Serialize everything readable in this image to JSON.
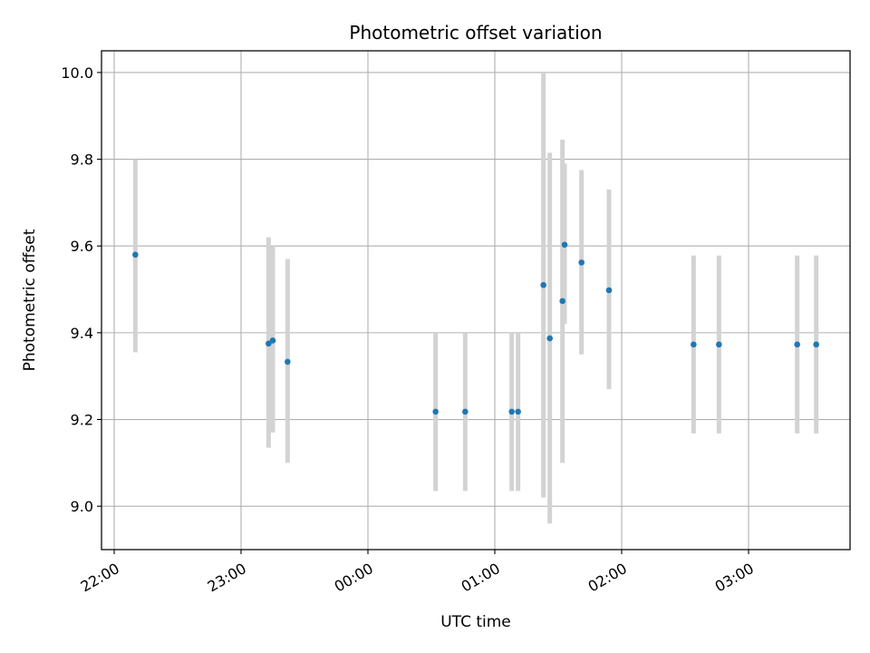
{
  "chart_data": {
    "type": "scatter",
    "title": "Photometric offset variation",
    "xlabel": "UTC time",
    "ylabel": "Photometric offset",
    "xlim": [
      "2021-01-01 21:54",
      "2021-01-02 03:48"
    ],
    "ylim": [
      8.9,
      10.05
    ],
    "x_tick_labels": [
      "22:00",
      "23:00",
      "00:00",
      "01:00",
      "02:00",
      "03:00"
    ],
    "y_tick_labels": [
      "9.0",
      "9.2",
      "9.4",
      "9.6",
      "9.8",
      "10.0"
    ],
    "grid": true,
    "marker_color": "#1f77b4",
    "errorbar_color": "#d3d3d3",
    "series": [
      {
        "points": [
          {
            "x": "2021-01-01 22:10",
            "y": 9.58,
            "yerr_low": 9.355,
            "yerr_high": 9.8
          },
          {
            "x": "2021-01-01 23:13",
            "y": 9.375,
            "yerr_low": 9.135,
            "yerr_high": 9.62
          },
          {
            "x": "2021-01-01 23:15",
            "y": 9.382,
            "yerr_low": 9.17,
            "yerr_high": 9.6
          },
          {
            "x": "2021-01-01 23:22",
            "y": 9.333,
            "yerr_low": 9.1,
            "yerr_high": 9.57
          },
          {
            "x": "2021-01-02 00:32",
            "y": 9.218,
            "yerr_low": 9.035,
            "yerr_high": 9.4
          },
          {
            "x": "2021-01-02 00:46",
            "y": 9.218,
            "yerr_low": 9.035,
            "yerr_high": 9.4
          },
          {
            "x": "2021-01-02 01:08",
            "y": 9.218,
            "yerr_low": 9.035,
            "yerr_high": 9.4
          },
          {
            "x": "2021-01-02 01:11",
            "y": 9.218,
            "yerr_low": 9.035,
            "yerr_high": 9.4
          },
          {
            "x": "2021-01-02 01:23",
            "y": 9.51,
            "yerr_low": 9.02,
            "yerr_high": 10.0
          },
          {
            "x": "2021-01-02 01:26",
            "y": 9.387,
            "yerr_low": 8.96,
            "yerr_high": 9.815
          },
          {
            "x": "2021-01-02 01:32",
            "y": 9.473,
            "yerr_low": 9.1,
            "yerr_high": 9.845
          },
          {
            "x": "2021-01-02 01:33",
            "y": 9.603,
            "yerr_low": 9.42,
            "yerr_high": 9.79
          },
          {
            "x": "2021-01-02 01:41",
            "y": 9.562,
            "yerr_low": 9.35,
            "yerr_high": 9.775
          },
          {
            "x": "2021-01-02 01:54",
            "y": 9.498,
            "yerr_low": 9.27,
            "yerr_high": 9.73
          },
          {
            "x": "2021-01-02 02:34",
            "y": 9.373,
            "yerr_low": 9.168,
            "yerr_high": 9.578
          },
          {
            "x": "2021-01-02 02:46",
            "y": 9.373,
            "yerr_low": 9.168,
            "yerr_high": 9.578
          },
          {
            "x": "2021-01-02 03:23",
            "y": 9.373,
            "yerr_low": 9.168,
            "yerr_high": 9.578
          },
          {
            "x": "2021-01-02 03:32",
            "y": 9.373,
            "yerr_low": 9.168,
            "yerr_high": 9.578
          }
        ]
      }
    ]
  }
}
